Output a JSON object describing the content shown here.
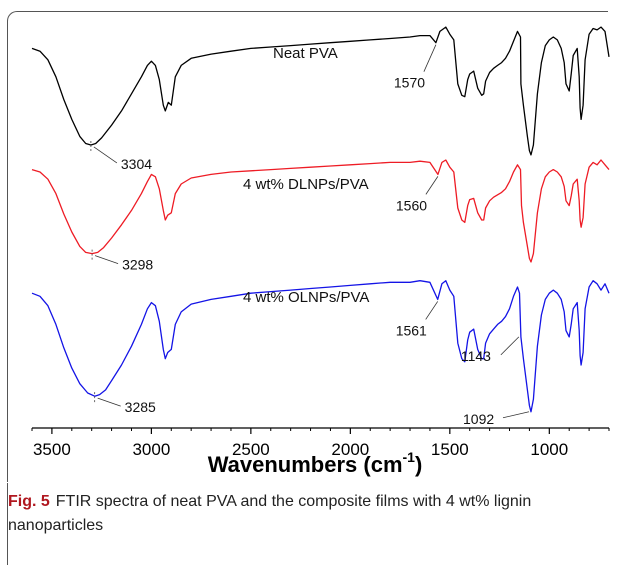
{
  "figure": {
    "label": "Fig. 5",
    "caption": "FTIR spectra of neat PVA and the composite films with 4 wt% lignin nanoparticles"
  },
  "chart_data": {
    "type": "line",
    "title": "",
    "xlabel": "Wavenumbers (cm",
    "xlabel_sup": "-1",
    "xlabel_close": ")",
    "ylabel": "",
    "xlim": [
      3600,
      700
    ],
    "x_reversed": true,
    "xticks": [
      3500,
      3000,
      2500,
      2000,
      1500,
      1000
    ],
    "grid": false,
    "series": [
      {
        "name": "Neat PVA",
        "color": "#000000",
        "points": [
          [
            3600,
            80
          ],
          [
            3560,
            78
          ],
          [
            3520,
            72
          ],
          [
            3480,
            60
          ],
          [
            3440,
            44
          ],
          [
            3400,
            30
          ],
          [
            3360,
            18
          ],
          [
            3330,
            13
          ],
          [
            3304,
            12
          ],
          [
            3280,
            13
          ],
          [
            3250,
            17
          ],
          [
            3200,
            26
          ],
          [
            3150,
            36
          ],
          [
            3100,
            48
          ],
          [
            3050,
            60
          ],
          [
            3020,
            68
          ],
          [
            3000,
            71
          ],
          [
            2980,
            68
          ],
          [
            2960,
            58
          ],
          [
            2940,
            40
          ],
          [
            2930,
            36
          ],
          [
            2915,
            42
          ],
          [
            2900,
            40
          ],
          [
            2880,
            60
          ],
          [
            2850,
            68
          ],
          [
            2800,
            73
          ],
          [
            2700,
            76
          ],
          [
            2600,
            78
          ],
          [
            2500,
            80
          ],
          [
            2400,
            81
          ],
          [
            2300,
            82
          ],
          [
            2200,
            83
          ],
          [
            2100,
            84
          ],
          [
            2000,
            85
          ],
          [
            1900,
            86
          ],
          [
            1800,
            87
          ],
          [
            1700,
            88
          ],
          [
            1650,
            89
          ],
          [
            1600,
            89
          ],
          [
            1570,
            84
          ],
          [
            1550,
            92
          ],
          [
            1520,
            95
          ],
          [
            1500,
            90
          ],
          [
            1480,
            86
          ],
          [
            1460,
            55
          ],
          [
            1440,
            47
          ],
          [
            1425,
            46
          ],
          [
            1410,
            58
          ],
          [
            1400,
            62
          ],
          [
            1380,
            64
          ],
          [
            1360,
            52
          ],
          [
            1340,
            47
          ],
          [
            1330,
            48
          ],
          [
            1320,
            57
          ],
          [
            1300,
            63
          ],
          [
            1280,
            66
          ],
          [
            1260,
            68
          ],
          [
            1240,
            70
          ],
          [
            1220,
            73
          ],
          [
            1200,
            78
          ],
          [
            1180,
            85
          ],
          [
            1160,
            92
          ],
          [
            1145,
            88
          ],
          [
            1143,
            55
          ],
          [
            1130,
            40
          ],
          [
            1110,
            18
          ],
          [
            1100,
            8
          ],
          [
            1092,
            5
          ],
          [
            1080,
            12
          ],
          [
            1060,
            48
          ],
          [
            1040,
            70
          ],
          [
            1020,
            82
          ],
          [
            1000,
            86
          ],
          [
            980,
            88
          ],
          [
            960,
            86
          ],
          [
            940,
            80
          ],
          [
            925,
            70
          ],
          [
            916,
            55
          ],
          [
            900,
            50
          ],
          [
            890,
            62
          ],
          [
            880,
            75
          ],
          [
            860,
            80
          ],
          [
            850,
            60
          ],
          [
            845,
            38
          ],
          [
            840,
            30
          ],
          [
            830,
            40
          ],
          [
            820,
            72
          ],
          [
            800,
            90
          ],
          [
            780,
            94
          ],
          [
            760,
            93
          ],
          [
            740,
            95
          ],
          [
            720,
            92
          ],
          [
            700,
            74
          ]
        ]
      },
      {
        "name": "4 wt% DLNPs/PVA",
        "color": "#ee1c25",
        "points": [
          [
            3600,
            82
          ],
          [
            3560,
            80
          ],
          [
            3520,
            74
          ],
          [
            3480,
            62
          ],
          [
            3440,
            45
          ],
          [
            3400,
            30
          ],
          [
            3360,
            18
          ],
          [
            3330,
            13
          ],
          [
            3298,
            12
          ],
          [
            3270,
            13
          ],
          [
            3240,
            17
          ],
          [
            3200,
            25
          ],
          [
            3150,
            36
          ],
          [
            3100,
            48
          ],
          [
            3050,
            62
          ],
          [
            3020,
            72
          ],
          [
            3000,
            78
          ],
          [
            2980,
            76
          ],
          [
            2960,
            66
          ],
          [
            2940,
            48
          ],
          [
            2930,
            40
          ],
          [
            2918,
            44
          ],
          [
            2900,
            46
          ],
          [
            2880,
            62
          ],
          [
            2850,
            70
          ],
          [
            2800,
            75
          ],
          [
            2700,
            78
          ],
          [
            2600,
            80
          ],
          [
            2500,
            81
          ],
          [
            2400,
            82
          ],
          [
            2300,
            83
          ],
          [
            2200,
            84
          ],
          [
            2100,
            85
          ],
          [
            2000,
            86
          ],
          [
            1900,
            87
          ],
          [
            1800,
            88
          ],
          [
            1700,
            88
          ],
          [
            1650,
            89
          ],
          [
            1600,
            88
          ],
          [
            1560,
            78
          ],
          [
            1540,
            88
          ],
          [
            1520,
            90
          ],
          [
            1500,
            84
          ],
          [
            1480,
            80
          ],
          [
            1460,
            50
          ],
          [
            1440,
            40
          ],
          [
            1425,
            38
          ],
          [
            1410,
            52
          ],
          [
            1400,
            57
          ],
          [
            1380,
            58
          ],
          [
            1360,
            46
          ],
          [
            1340,
            40
          ],
          [
            1330,
            40
          ],
          [
            1320,
            50
          ],
          [
            1300,
            56
          ],
          [
            1280,
            59
          ],
          [
            1260,
            61
          ],
          [
            1240,
            63
          ],
          [
            1220,
            66
          ],
          [
            1200,
            72
          ],
          [
            1180,
            80
          ],
          [
            1160,
            86
          ],
          [
            1145,
            82
          ],
          [
            1140,
            52
          ],
          [
            1130,
            38
          ],
          [
            1110,
            18
          ],
          [
            1100,
            8
          ],
          [
            1092,
            5
          ],
          [
            1080,
            12
          ],
          [
            1060,
            46
          ],
          [
            1040,
            66
          ],
          [
            1020,
            76
          ],
          [
            1000,
            80
          ],
          [
            980,
            82
          ],
          [
            960,
            80
          ],
          [
            940,
            76
          ],
          [
            925,
            68
          ],
          [
            916,
            56
          ],
          [
            900,
            52
          ],
          [
            890,
            60
          ],
          [
            880,
            70
          ],
          [
            860,
            74
          ],
          [
            850,
            56
          ],
          [
            845,
            40
          ],
          [
            840,
            34
          ],
          [
            830,
            42
          ],
          [
            820,
            70
          ],
          [
            800,
            84
          ],
          [
            780,
            88
          ],
          [
            760,
            86
          ],
          [
            740,
            90
          ],
          [
            720,
            86
          ],
          [
            700,
            82
          ]
        ]
      },
      {
        "name": "4 wt% OLNPs/PVA",
        "color": "#1414e6",
        "points": [
          [
            3600,
            80
          ],
          [
            3560,
            78
          ],
          [
            3520,
            72
          ],
          [
            3480,
            60
          ],
          [
            3440,
            45
          ],
          [
            3400,
            32
          ],
          [
            3360,
            22
          ],
          [
            3320,
            16
          ],
          [
            3285,
            14
          ],
          [
            3260,
            15
          ],
          [
            3230,
            18
          ],
          [
            3200,
            24
          ],
          [
            3150,
            34
          ],
          [
            3100,
            46
          ],
          [
            3050,
            60
          ],
          [
            3020,
            70
          ],
          [
            3000,
            74
          ],
          [
            2980,
            72
          ],
          [
            2960,
            62
          ],
          [
            2940,
            44
          ],
          [
            2930,
            38
          ],
          [
            2918,
            42
          ],
          [
            2900,
            44
          ],
          [
            2880,
            60
          ],
          [
            2850,
            68
          ],
          [
            2800,
            73
          ],
          [
            2700,
            76
          ],
          [
            2600,
            78
          ],
          [
            2500,
            80
          ],
          [
            2400,
            81
          ],
          [
            2300,
            82
          ],
          [
            2200,
            83
          ],
          [
            2100,
            84
          ],
          [
            2000,
            85
          ],
          [
            1900,
            86
          ],
          [
            1800,
            87
          ],
          [
            1700,
            87
          ],
          [
            1650,
            88
          ],
          [
            1600,
            87
          ],
          [
            1561,
            76
          ],
          [
            1540,
            86
          ],
          [
            1520,
            88
          ],
          [
            1500,
            82
          ],
          [
            1480,
            78
          ],
          [
            1460,
            48
          ],
          [
            1440,
            38
          ],
          [
            1425,
            36
          ],
          [
            1410,
            50
          ],
          [
            1400,
            55
          ],
          [
            1380,
            57
          ],
          [
            1360,
            44
          ],
          [
            1340,
            38
          ],
          [
            1330,
            38
          ],
          [
            1320,
            48
          ],
          [
            1300,
            54
          ],
          [
            1280,
            57
          ],
          [
            1260,
            60
          ],
          [
            1240,
            62
          ],
          [
            1220,
            65
          ],
          [
            1200,
            70
          ],
          [
            1180,
            78
          ],
          [
            1160,
            84
          ],
          [
            1150,
            80
          ],
          [
            1143,
            52
          ],
          [
            1130,
            38
          ],
          [
            1110,
            18
          ],
          [
            1100,
            8
          ],
          [
            1092,
            4
          ],
          [
            1080,
            12
          ],
          [
            1060,
            46
          ],
          [
            1040,
            66
          ],
          [
            1020,
            76
          ],
          [
            1000,
            80
          ],
          [
            980,
            82
          ],
          [
            960,
            80
          ],
          [
            940,
            76
          ],
          [
            925,
            68
          ],
          [
            916,
            56
          ],
          [
            900,
            52
          ],
          [
            890,
            60
          ],
          [
            880,
            70
          ],
          [
            860,
            74
          ],
          [
            850,
            56
          ],
          [
            845,
            40
          ],
          [
            840,
            34
          ],
          [
            830,
            42
          ],
          [
            820,
            70
          ],
          [
            800,
            84
          ],
          [
            780,
            88
          ],
          [
            760,
            86
          ],
          [
            740,
            82
          ],
          [
            720,
            86
          ],
          [
            700,
            80
          ]
        ]
      }
    ],
    "annotations": [
      {
        "series": "Neat PVA",
        "text": "3304",
        "x": 3304
      },
      {
        "series": "Neat PVA",
        "text": "1570",
        "x": 1570
      },
      {
        "series": "4 wt% DLNPs/PVA",
        "text": "3298",
        "x": 3298
      },
      {
        "series": "4 wt% DLNPs/PVA",
        "text": "1560",
        "x": 1560
      },
      {
        "series": "4 wt% OLNPs/PVA",
        "text": "3285",
        "x": 3285
      },
      {
        "series": "4 wt% OLNPs/PVA",
        "text": "1561",
        "x": 1561
      },
      {
        "series": "4 wt% OLNPs/PVA",
        "text": "1143",
        "x": 1143
      },
      {
        "series": "4 wt% OLNPs/PVA",
        "text": "1092",
        "x": 1092
      }
    ]
  }
}
